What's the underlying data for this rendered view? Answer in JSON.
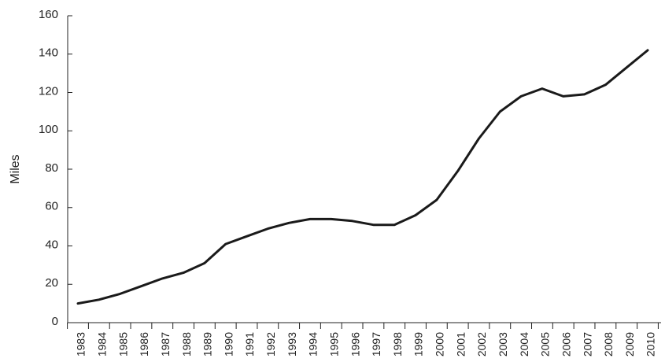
{
  "chart_data": {
    "type": "line",
    "title": "",
    "xlabel": "",
    "ylabel": "Miles",
    "ylim": [
      0,
      160
    ],
    "yticks": [
      0,
      20,
      40,
      60,
      80,
      100,
      120,
      140,
      160
    ],
    "grid": false,
    "legend": "none",
    "line_color": "#1a1a1a",
    "x": [
      "1983",
      "1984",
      "1985",
      "1986",
      "1987",
      "1988",
      "1989",
      "1990",
      "1991",
      "1992",
      "1993",
      "1994",
      "1995",
      "1996",
      "1997",
      "1998",
      "1999",
      "2000",
      "2001",
      "2002",
      "2003",
      "2004",
      "2005",
      "2006",
      "2007",
      "2008",
      "2009",
      "2010"
    ],
    "values": [
      10,
      12,
      15,
      19,
      23,
      26,
      31,
      41,
      45,
      49,
      52,
      54,
      54,
      53,
      51,
      51,
      56,
      64,
      79,
      96,
      110,
      118,
      122,
      118,
      119,
      124,
      133,
      142
    ]
  }
}
